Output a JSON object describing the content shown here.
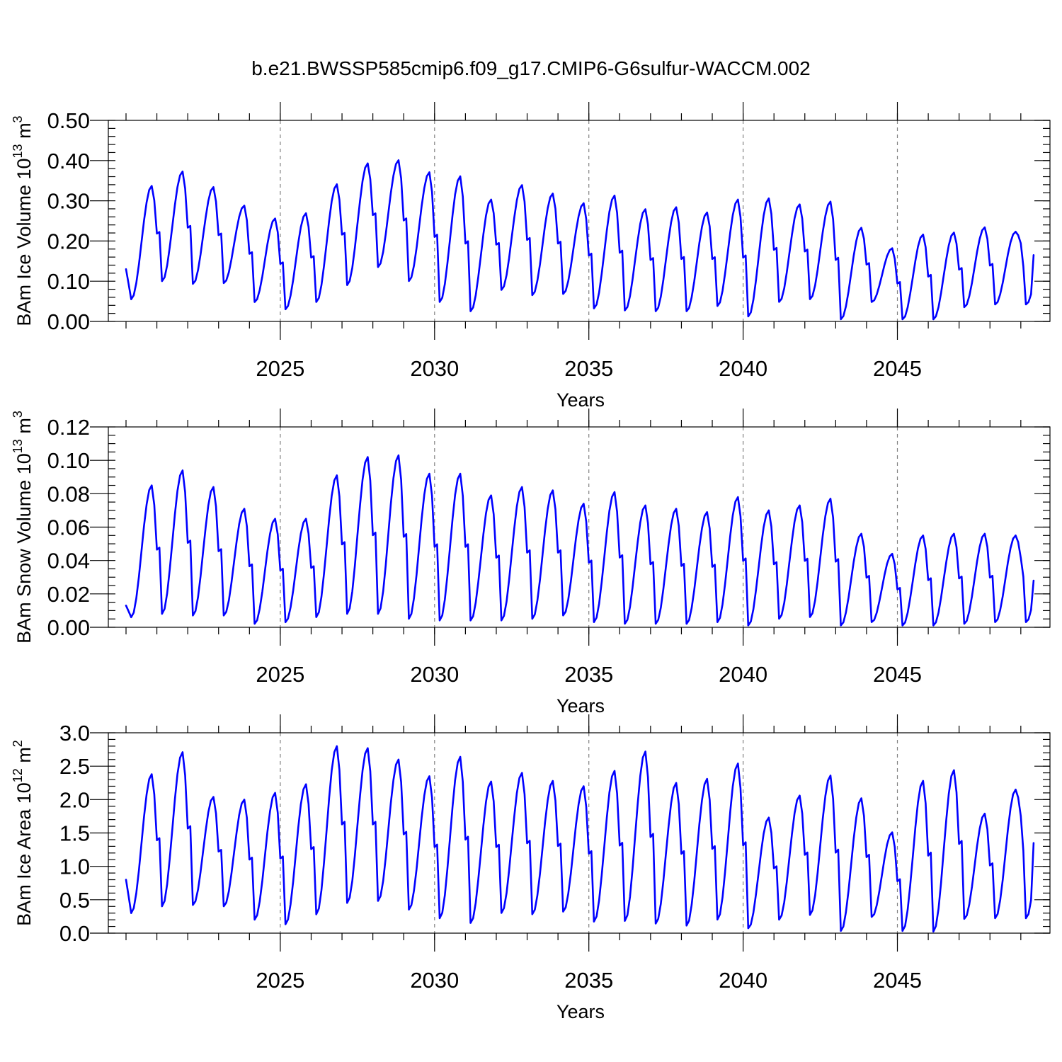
{
  "figure": {
    "title": "b.e21.BWSSP585cmip6.f09_g17.CMIP6-G6sulfur-WACCM.002"
  },
  "colors": {
    "line": "#0000ff"
  },
  "chart_data": [
    {
      "type": "line",
      "title": "",
      "xlabel": "Years",
      "ylabel": {
        "base": "BAm Ice Volume 10",
        "exp": "13",
        "unit": " m",
        "unit_exp": "3"
      },
      "xlim": [
        2020.0,
        2049.417
      ],
      "ylim": [
        0.0,
        0.5
      ],
      "x_major_ticks": [
        2025,
        2030,
        2035,
        2040,
        2045
      ],
      "x_tick_labels": [
        "2025",
        "2030",
        "2035",
        "2040",
        "2045"
      ],
      "y_major_ticks": [
        0.0,
        0.1,
        0.2,
        0.3,
        0.4,
        0.5
      ],
      "y_tick_labels": [
        "0.00",
        "0.10",
        "0.20",
        "0.30",
        "0.40",
        "0.50"
      ],
      "y_minor_step": 0.02,
      "grid": "dashed vertical lines at major x ticks",
      "x_start": 2020.0,
      "x_step_years": 0.08333,
      "peaks": [
        0.337,
        0.373,
        0.334,
        0.288,
        0.256,
        0.269,
        0.341,
        0.393,
        0.401,
        0.371,
        0.361,
        0.303,
        0.339,
        0.318,
        0.294,
        0.313,
        0.279,
        0.284,
        0.271,
        0.303,
        0.306,
        0.291,
        0.298,
        0.233,
        0.182,
        0.216,
        0.221,
        0.234,
        0.223
      ],
      "troughs": [
        0.055,
        0.1,
        0.093,
        0.095,
        0.048,
        0.03,
        0.048,
        0.09,
        0.135,
        0.1,
        0.048,
        0.025,
        0.078,
        0.065,
        0.068,
        0.032,
        0.027,
        0.025,
        0.025,
        0.038,
        0.012,
        0.048,
        0.055,
        0.005,
        0.048,
        0.005,
        0.005,
        0.035,
        0.042
      ],
      "start_value": 0.13,
      "end_value": 0.165,
      "series": [
        {
          "color": "#0000ff"
        }
      ]
    },
    {
      "type": "line",
      "title": "",
      "xlabel": "Years",
      "ylabel": {
        "base": "BAm Snow Volume 10",
        "exp": "13",
        "unit": " m",
        "unit_exp": "3"
      },
      "xlim": [
        2020.0,
        2049.417
      ],
      "ylim": [
        0.0,
        0.12
      ],
      "x_major_ticks": [
        2025,
        2030,
        2035,
        2040,
        2045
      ],
      "x_tick_labels": [
        "2025",
        "2030",
        "2035",
        "2040",
        "2045"
      ],
      "y_major_ticks": [
        0.0,
        0.02,
        0.04,
        0.06,
        0.08,
        0.1,
        0.12
      ],
      "y_tick_labels": [
        "0.00",
        "0.02",
        "0.04",
        "0.06",
        "0.08",
        "0.10",
        "0.12"
      ],
      "y_minor_step": 0.005,
      "grid": "dashed vertical lines at major x ticks",
      "x_start": 2020.0,
      "x_step_years": 0.08333,
      "peaks": [
        0.085,
        0.094,
        0.084,
        0.071,
        0.065,
        0.065,
        0.091,
        0.102,
        0.103,
        0.092,
        0.092,
        0.079,
        0.084,
        0.082,
        0.074,
        0.081,
        0.073,
        0.071,
        0.069,
        0.078,
        0.07,
        0.073,
        0.077,
        0.056,
        0.044,
        0.055,
        0.056,
        0.056,
        0.055
      ],
      "troughs": [
        0.006,
        0.008,
        0.007,
        0.007,
        0.002,
        0.003,
        0.006,
        0.008,
        0.008,
        0.005,
        0.004,
        0.004,
        0.004,
        0.005,
        0.007,
        0.003,
        0.002,
        0.002,
        0.002,
        0.003,
        0.001,
        0.005,
        0.006,
        0.001,
        0.003,
        0.001,
        0.001,
        0.002,
        0.003
      ],
      "start_value": 0.013,
      "end_value": 0.028,
      "series": [
        {
          "color": "#0000ff"
        }
      ]
    },
    {
      "type": "line",
      "title": "",
      "xlabel": "Years",
      "ylabel": {
        "base": "BAm Ice Area 10",
        "exp": "12",
        "unit": " m",
        "unit_exp": "2"
      },
      "xlim": [
        2020.0,
        2049.417
      ],
      "ylim": [
        0.0,
        3.0
      ],
      "x_major_ticks": [
        2025,
        2030,
        2035,
        2040,
        2045
      ],
      "x_tick_labels": [
        "2025",
        "2030",
        "2035",
        "2040",
        "2045"
      ],
      "y_major_ticks": [
        0.0,
        0.5,
        1.0,
        1.5,
        2.0,
        2.5,
        3.0
      ],
      "y_tick_labels": [
        "0.0",
        "0.5",
        "1.0",
        "1.5",
        "2.0",
        "2.5",
        "3.0"
      ],
      "y_minor_step": 0.1,
      "grid": "dashed vertical lines at major x ticks",
      "x_start": 2020.0,
      "x_step_years": 0.08333,
      "peaks": [
        2.38,
        2.71,
        2.04,
        2.0,
        2.1,
        2.23,
        2.8,
        2.77,
        2.6,
        2.35,
        2.64,
        2.27,
        2.4,
        2.28,
        2.2,
        2.43,
        2.72,
        2.25,
        2.31,
        2.54,
        1.73,
        2.06,
        2.36,
        2.02,
        1.51,
        2.28,
        2.44,
        1.79,
        2.15
      ],
      "troughs": [
        0.3,
        0.4,
        0.42,
        0.4,
        0.2,
        0.13,
        0.28,
        0.45,
        0.48,
        0.35,
        0.22,
        0.15,
        0.3,
        0.28,
        0.32,
        0.17,
        0.18,
        0.14,
        0.11,
        0.2,
        0.07,
        0.2,
        0.27,
        0.03,
        0.24,
        0.03,
        0.02,
        0.21,
        0.22
      ],
      "start_value": 0.8,
      "end_value": 1.35,
      "series": [
        {
          "color": "#0000ff"
        }
      ]
    }
  ]
}
